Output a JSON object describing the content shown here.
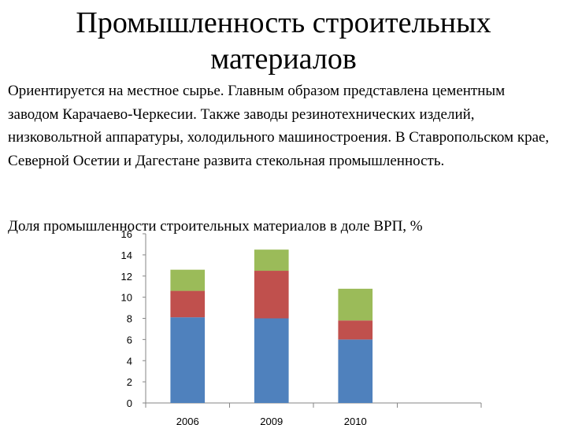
{
  "slide": {
    "title": "Промышленность строительных материалов",
    "paragraph": "Ориентируется на местное сырье. Главным образом представлена цементным заводом Карачаево-Черкесии. Также заводы резинотехнических изделий, низковольтной аппаратуры, холодильного машиностроения. В Ставропольском крае, Северной Осетии и Дагестане развита стекольная промышленность.",
    "chart_caption": "Доля промышленности строительных материалов в доле ВРП, %"
  },
  "chart_data": {
    "type": "bar",
    "stacked": true,
    "title": "Доля промышленности строительных материалов в доле ВРП, %",
    "categories": [
      "2006",
      "2009",
      "2010",
      ""
    ],
    "series": [
      {
        "values": [
          8.1,
          8.0,
          6.0,
          0
        ],
        "color": "#4F81BD"
      },
      {
        "values": [
          2.5,
          4.5,
          1.8,
          0
        ],
        "color": "#C0504D"
      },
      {
        "values": [
          2.0,
          2.0,
          3.0,
          0
        ],
        "color": "#9BBB59"
      }
    ],
    "ylim": [
      0,
      16
    ],
    "yticks": [
      "0",
      "2",
      "4",
      "6",
      "8",
      "10",
      "12",
      "14",
      "16"
    ],
    "grid": false,
    "legend": "none"
  }
}
